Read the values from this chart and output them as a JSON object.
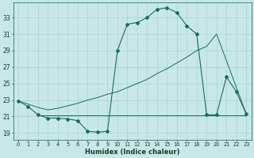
{
  "xlabel": "Humidex (Indice chaleur)",
  "background_color": "#c8e8e8",
  "line_color": "#1a6b5a",
  "x_ticks": [
    0,
    1,
    2,
    3,
    4,
    5,
    6,
    7,
    8,
    9,
    10,
    11,
    12,
    13,
    14,
    15,
    16,
    17,
    18,
    19,
    20,
    21,
    22,
    23
  ],
  "y_ticks": [
    19,
    21,
    23,
    25,
    27,
    29,
    31,
    33
  ],
  "ylim": [
    18.2,
    34.8
  ],
  "xlim": [
    -0.5,
    23.5
  ],
  "main_series": [
    22.9,
    22.2,
    21.2,
    20.8,
    20.8,
    20.7,
    20.5,
    19.2,
    19.1,
    19.2,
    29.0,
    32.2,
    32.4,
    33.0,
    34.0,
    34.2,
    33.6,
    32.0,
    31.0,
    21.2,
    21.2,
    25.8,
    24.0,
    21.3
  ],
  "flat_series_x": [
    2,
    3,
    4,
    5,
    6,
    7,
    8,
    9,
    10,
    11,
    12,
    13,
    14,
    15,
    16,
    17,
    18,
    19,
    20,
    21,
    22,
    23
  ],
  "flat_series_y": [
    21.1,
    21.1,
    21.1,
    21.1,
    21.1,
    21.1,
    21.1,
    21.1,
    21.1,
    21.1,
    21.1,
    21.1,
    21.1,
    21.1,
    21.1,
    21.1,
    21.1,
    21.1,
    21.1,
    21.1,
    21.1,
    21.1
  ],
  "diag_series_x": [
    0,
    1,
    2,
    3,
    4,
    5,
    6,
    7,
    8,
    9,
    10,
    11,
    12,
    13,
    14,
    15,
    16,
    17,
    18,
    19,
    20,
    23
  ],
  "diag_series_y": [
    22.9,
    22.5,
    22.1,
    21.8,
    22.0,
    22.3,
    22.6,
    23.0,
    23.3,
    23.7,
    24.0,
    24.5,
    25.0,
    25.5,
    26.2,
    26.8,
    27.5,
    28.2,
    29.0,
    29.5,
    31.0,
    21.3
  ]
}
